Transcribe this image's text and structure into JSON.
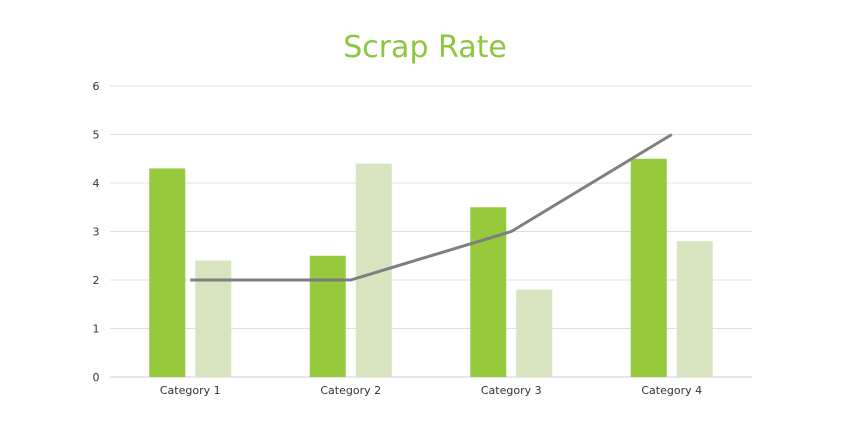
{
  "chart_data": {
    "type": "bar",
    "title": "Scrap Rate",
    "xlabel": "",
    "ylabel": "",
    "categories": [
      "Category 1",
      "Category 2",
      "Category 3",
      "Category 4"
    ],
    "ylim": [
      0,
      6
    ],
    "yticks": [
      0,
      1,
      2,
      3,
      4,
      5,
      6
    ],
    "grid": true,
    "legend": "none",
    "series": [
      {
        "type": "bar",
        "values": [
          4.3,
          2.5,
          3.5,
          4.5
        ],
        "color": "#97c93d"
      },
      {
        "type": "bar",
        "values": [
          2.4,
          4.4,
          1.8,
          2.8
        ],
        "color": "#d8e4bf"
      },
      {
        "type": "line",
        "values": [
          2,
          2,
          3,
          5
        ],
        "color": "#7f7f7f"
      }
    ]
  }
}
